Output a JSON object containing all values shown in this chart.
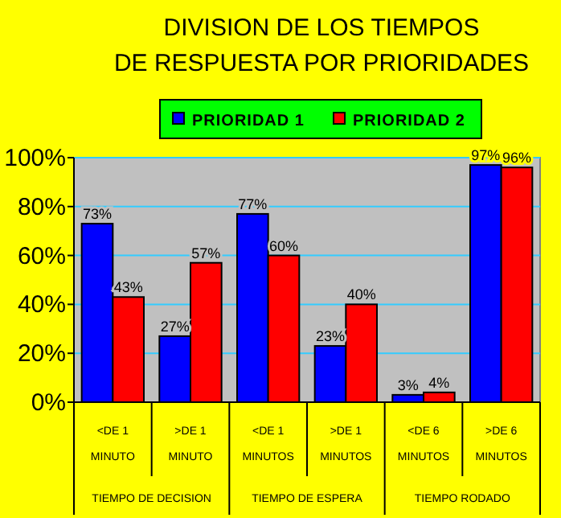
{
  "chart_data": {
    "type": "bar",
    "title": "DIVISION DE LOS TIEMPOS\nDE RESPUESTA POR PRIORIDADES",
    "categories": [
      "<DE 1\nMINUTO",
      ">DE 1\nMINUTO",
      "<DE 1\nMINUTOS",
      ">DE 1\nMINUTOS",
      "<DE 6\nMINUTOS",
      ">DE 6\nMINUTOS"
    ],
    "series": [
      {
        "name": "PRIORIDAD 1",
        "color": "#0000ff",
        "values": [
          73,
          27,
          77,
          23,
          3,
          97
        ],
        "value_labels": [
          "73%",
          "27%",
          "77%",
          "23%",
          "3%",
          "97%"
        ]
      },
      {
        "name": "PRIORIDAD 2",
        "color": "#ff0000",
        "values": [
          43,
          57,
          60,
          40,
          4,
          96
        ],
        "value_labels": [
          "43%",
          "57%",
          "60%",
          "40%",
          "4%",
          "96%"
        ]
      }
    ],
    "annotations": [
      "TIEMPO DE DECISION",
      "TIEMPO DE ESPERA",
      "TIEMPO RODADO"
    ],
    "ylim": [
      0,
      100
    ],
    "yticks": [
      {
        "value": 0,
        "label": "0%"
      },
      {
        "value": 20,
        "label": "20%"
      },
      {
        "value": 40,
        "label": "40%"
      },
      {
        "value": 60,
        "label": "60%"
      },
      {
        "value": 80,
        "label": "80%"
      },
      {
        "value": 100,
        "label": "100%"
      }
    ],
    "grid": "y",
    "legend": "top"
  }
}
